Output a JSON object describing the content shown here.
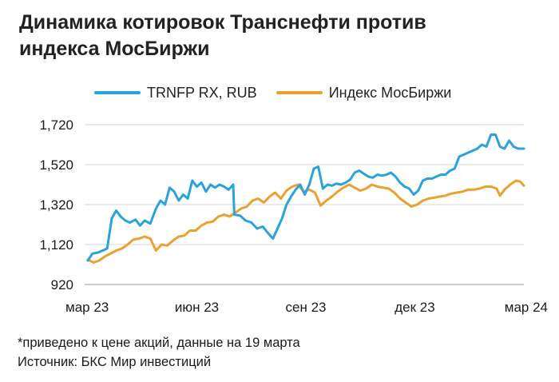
{
  "title_line1": "Динамика котировок Транснефти против",
  "title_line2": "индекса МосБиржи",
  "footnote": "*приведено к цене акций, данные на 19 марта",
  "source": "Источник: БКС Мир инвестиций",
  "chart_data": {
    "type": "line",
    "title": "Динамика котировок Транснефти против индекса МосБиржи",
    "x_ticks": [
      "мар 23",
      "июн 23",
      "сен 23",
      "дек 23",
      "мар 24"
    ],
    "x_start": "2023-03-01",
    "x_end": "2024-03-19",
    "y_ticks": [
      "920",
      "1,120",
      "1,320",
      "1,520",
      "1,720"
    ],
    "ylim": [
      920,
      1720
    ],
    "grid": true,
    "legend_position": "top",
    "series": [
      {
        "name": "TRNFP RX, RUB",
        "color": "#2aa3dc",
        "points": [
          [
            "2023-03-01",
            1040
          ],
          [
            "2023-03-05",
            1075
          ],
          [
            "2023-03-10",
            1080
          ],
          [
            "2023-03-14",
            1090
          ],
          [
            "2023-03-18",
            1100
          ],
          [
            "2023-03-22",
            1250
          ],
          [
            "2023-03-26",
            1290
          ],
          [
            "2023-03-30",
            1260
          ],
          [
            "2023-04-03",
            1240
          ],
          [
            "2023-04-07",
            1230
          ],
          [
            "2023-04-12",
            1245
          ],
          [
            "2023-04-16",
            1215
          ],
          [
            "2023-04-20",
            1240
          ],
          [
            "2023-04-25",
            1225
          ],
          [
            "2023-04-30",
            1300
          ],
          [
            "2023-05-04",
            1340
          ],
          [
            "2023-05-08",
            1320
          ],
          [
            "2023-05-12",
            1405
          ],
          [
            "2023-05-16",
            1385
          ],
          [
            "2023-05-20",
            1340
          ],
          [
            "2023-05-24",
            1370
          ],
          [
            "2023-05-28",
            1350
          ],
          [
            "2023-06-01",
            1440
          ],
          [
            "2023-06-05",
            1410
          ],
          [
            "2023-06-09",
            1430
          ],
          [
            "2023-06-13",
            1385
          ],
          [
            "2023-06-17",
            1420
          ],
          [
            "2023-06-21",
            1405
          ],
          [
            "2023-06-25",
            1420
          ],
          [
            "2023-06-29",
            1410
          ],
          [
            "2023-07-03",
            1395
          ],
          [
            "2023-07-07",
            1420
          ],
          [
            "2023-07-08",
            1270
          ],
          [
            "2023-07-13",
            1265
          ],
          [
            "2023-07-18",
            1240
          ],
          [
            "2023-07-23",
            1230
          ],
          [
            "2023-07-28",
            1200
          ],
          [
            "2023-08-02",
            1210
          ],
          [
            "2023-08-07",
            1175
          ],
          [
            "2023-08-11",
            1150
          ],
          [
            "2023-08-15",
            1200
          ],
          [
            "2023-08-19",
            1250
          ],
          [
            "2023-08-23",
            1320
          ],
          [
            "2023-08-27",
            1360
          ],
          [
            "2023-08-31",
            1395
          ],
          [
            "2023-09-04",
            1420
          ],
          [
            "2023-09-08",
            1370
          ],
          [
            "2023-09-12",
            1420
          ],
          [
            "2023-09-16",
            1500
          ],
          [
            "2023-09-20",
            1510
          ],
          [
            "2023-09-24",
            1400
          ],
          [
            "2023-09-28",
            1420
          ],
          [
            "2023-10-02",
            1415
          ],
          [
            "2023-10-06",
            1425
          ],
          [
            "2023-10-10",
            1420
          ],
          [
            "2023-10-14",
            1430
          ],
          [
            "2023-10-18",
            1445
          ],
          [
            "2023-10-22",
            1480
          ],
          [
            "2023-10-26",
            1490
          ],
          [
            "2023-10-30",
            1475
          ],
          [
            "2023-11-03",
            1460
          ],
          [
            "2023-11-07",
            1455
          ],
          [
            "2023-11-11",
            1470
          ],
          [
            "2023-11-15",
            1465
          ],
          [
            "2023-11-19",
            1470
          ],
          [
            "2023-11-23",
            1480
          ],
          [
            "2023-11-27",
            1460
          ],
          [
            "2023-12-01",
            1430
          ],
          [
            "2023-12-05",
            1410
          ],
          [
            "2023-12-09",
            1400
          ],
          [
            "2023-12-13",
            1370
          ],
          [
            "2023-12-17",
            1390
          ],
          [
            "2023-12-21",
            1440
          ],
          [
            "2023-12-25",
            1450
          ],
          [
            "2023-12-29",
            1450
          ],
          [
            "2024-01-02",
            1460
          ],
          [
            "2024-01-06",
            1470
          ],
          [
            "2024-01-10",
            1470
          ],
          [
            "2024-01-14",
            1490
          ],
          [
            "2024-01-18",
            1500
          ],
          [
            "2024-01-22",
            1560
          ],
          [
            "2024-01-26",
            1570
          ],
          [
            "2024-01-30",
            1580
          ],
          [
            "2024-02-03",
            1590
          ],
          [
            "2024-02-07",
            1600
          ],
          [
            "2024-02-11",
            1620
          ],
          [
            "2024-02-15",
            1610
          ],
          [
            "2024-02-19",
            1670
          ],
          [
            "2024-02-23",
            1670
          ],
          [
            "2024-02-27",
            1610
          ],
          [
            "2024-03-02",
            1600
          ],
          [
            "2024-03-06",
            1640
          ],
          [
            "2024-03-10",
            1610
          ],
          [
            "2024-03-14",
            1600
          ],
          [
            "2024-03-19",
            1600
          ]
        ]
      },
      {
        "name": "Индекс МосБиржи",
        "color": "#eaa12f",
        "points": [
          [
            "2023-03-01",
            1045
          ],
          [
            "2023-03-06",
            1030
          ],
          [
            "2023-03-11",
            1040
          ],
          [
            "2023-03-16",
            1060
          ],
          [
            "2023-03-21",
            1075
          ],
          [
            "2023-03-26",
            1090
          ],
          [
            "2023-03-31",
            1100
          ],
          [
            "2023-04-05",
            1120
          ],
          [
            "2023-04-10",
            1145
          ],
          [
            "2023-04-15",
            1150
          ],
          [
            "2023-04-20",
            1160
          ],
          [
            "2023-04-25",
            1150
          ],
          [
            "2023-04-30",
            1090
          ],
          [
            "2023-05-05",
            1120
          ],
          [
            "2023-05-10",
            1115
          ],
          [
            "2023-05-15",
            1140
          ],
          [
            "2023-05-20",
            1160
          ],
          [
            "2023-05-25",
            1165
          ],
          [
            "2023-05-30",
            1190
          ],
          [
            "2023-06-04",
            1190
          ],
          [
            "2023-06-09",
            1215
          ],
          [
            "2023-06-14",
            1230
          ],
          [
            "2023-06-19",
            1235
          ],
          [
            "2023-06-24",
            1260
          ],
          [
            "2023-06-29",
            1270
          ],
          [
            "2023-07-04",
            1260
          ],
          [
            "2023-07-09",
            1280
          ],
          [
            "2023-07-14",
            1300
          ],
          [
            "2023-07-19",
            1310
          ],
          [
            "2023-07-24",
            1340
          ],
          [
            "2023-07-29",
            1350
          ],
          [
            "2023-08-03",
            1330
          ],
          [
            "2023-08-08",
            1360
          ],
          [
            "2023-08-13",
            1380
          ],
          [
            "2023-08-18",
            1350
          ],
          [
            "2023-08-23",
            1390
          ],
          [
            "2023-08-28",
            1410
          ],
          [
            "2023-09-02",
            1420
          ],
          [
            "2023-09-07",
            1385
          ],
          [
            "2023-09-12",
            1395
          ],
          [
            "2023-09-17",
            1380
          ],
          [
            "2023-09-22",
            1315
          ],
          [
            "2023-09-27",
            1340
          ],
          [
            "2023-10-02",
            1360
          ],
          [
            "2023-10-07",
            1385
          ],
          [
            "2023-10-12",
            1405
          ],
          [
            "2023-10-17",
            1420
          ],
          [
            "2023-10-22",
            1405
          ],
          [
            "2023-10-27",
            1390
          ],
          [
            "2023-11-01",
            1400
          ],
          [
            "2023-11-06",
            1420
          ],
          [
            "2023-11-11",
            1410
          ],
          [
            "2023-11-16",
            1405
          ],
          [
            "2023-11-21",
            1400
          ],
          [
            "2023-11-26",
            1380
          ],
          [
            "2023-12-01",
            1350
          ],
          [
            "2023-12-06",
            1330
          ],
          [
            "2023-12-11",
            1310
          ],
          [
            "2023-12-16",
            1320
          ],
          [
            "2023-12-21",
            1340
          ],
          [
            "2023-12-26",
            1350
          ],
          [
            "2023-12-31",
            1355
          ],
          [
            "2024-01-05",
            1360
          ],
          [
            "2024-01-10",
            1365
          ],
          [
            "2024-01-15",
            1375
          ],
          [
            "2024-01-20",
            1380
          ],
          [
            "2024-01-25",
            1385
          ],
          [
            "2024-01-30",
            1395
          ],
          [
            "2024-02-04",
            1395
          ],
          [
            "2024-02-09",
            1400
          ],
          [
            "2024-02-14",
            1410
          ],
          [
            "2024-02-19",
            1410
          ],
          [
            "2024-02-24",
            1400
          ],
          [
            "2024-02-27",
            1365
          ],
          [
            "2024-03-02",
            1395
          ],
          [
            "2024-03-07",
            1420
          ],
          [
            "2024-03-12",
            1440
          ],
          [
            "2024-03-16",
            1435
          ],
          [
            "2024-03-19",
            1415
          ]
        ]
      }
    ]
  }
}
